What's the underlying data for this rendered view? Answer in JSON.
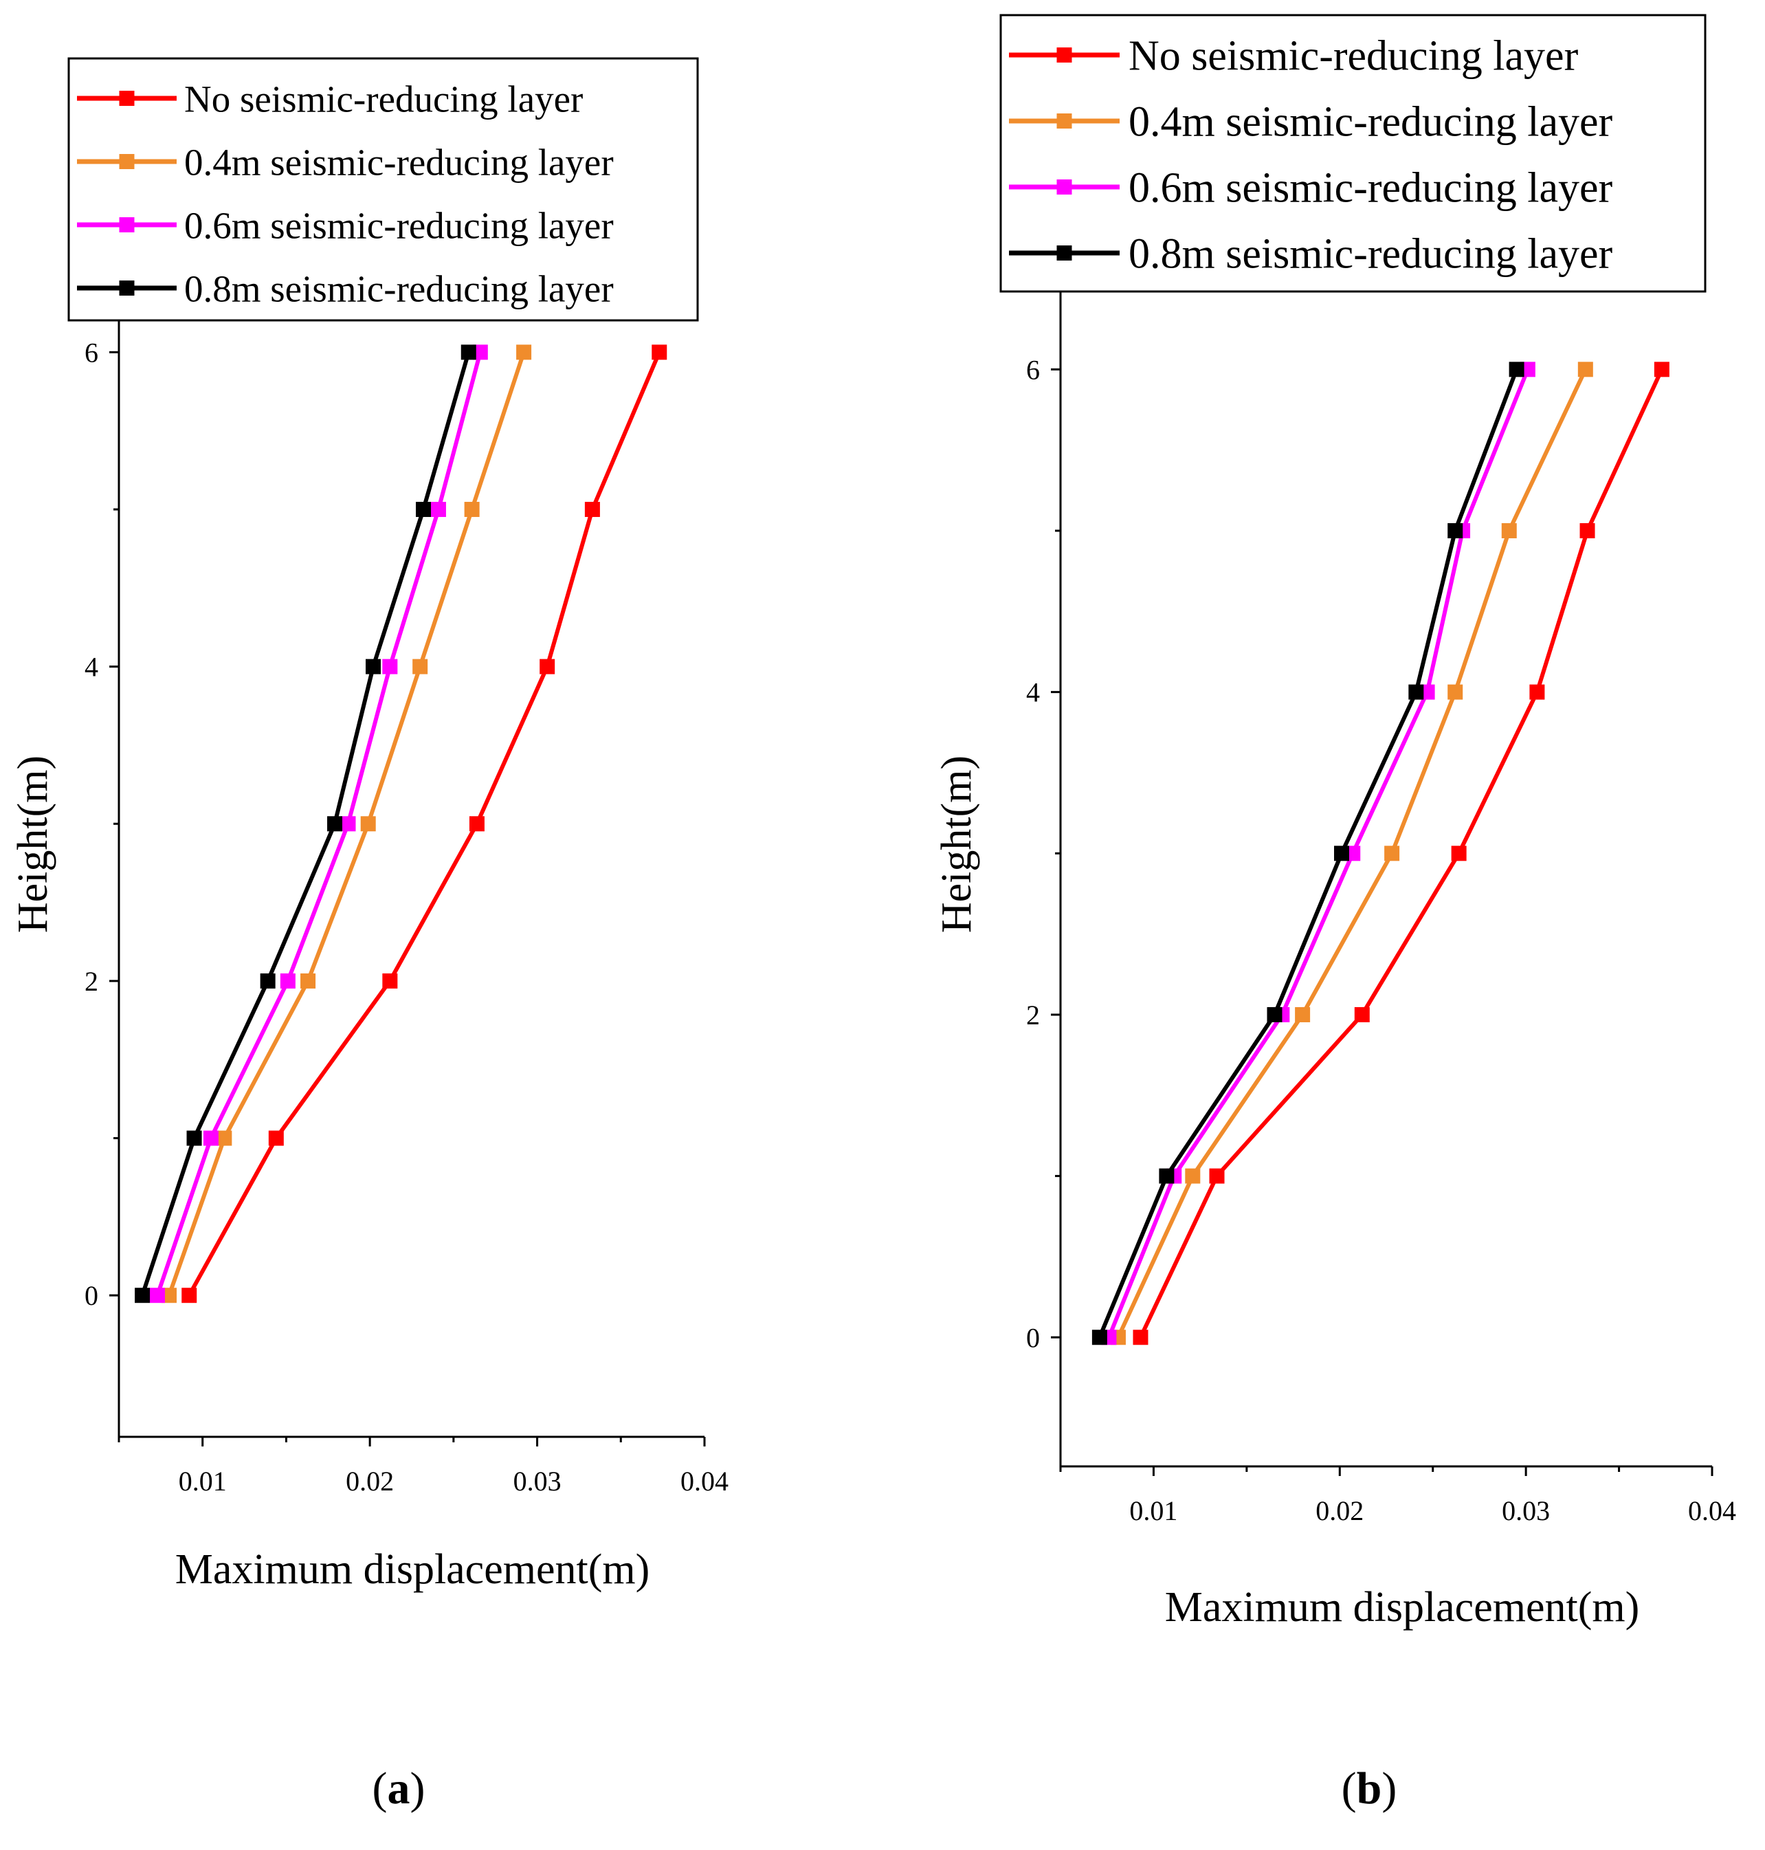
{
  "chart_data": [
    {
      "type": "line",
      "panel": "a",
      "caption_open": "(",
      "caption_letter": "a",
      "caption_close": ")",
      "xlabel": "Maximum displacement(m)",
      "ylabel": "Height(m)",
      "xlim": [
        0.005,
        0.04
      ],
      "ylim": [
        -0.9,
        6.5
      ],
      "xticks": [
        "0.01",
        "0.02",
        "0.03",
        "0.04"
      ],
      "yticks": [
        "0",
        "2",
        "4",
        "6"
      ],
      "legend_position": "top",
      "y": [
        0,
        1,
        2,
        3,
        4,
        5,
        6
      ],
      "series": [
        {
          "name": "No seismic-reducing layer",
          "color": "#ff0000",
          "x": [
            0.0092,
            0.0144,
            0.0212,
            0.0264,
            0.0306,
            0.0333,
            0.0373
          ]
        },
        {
          "name": "0.4m seismic-reducing layer",
          "color": "#f08c2c",
          "x": [
            0.008,
            0.0113,
            0.0163,
            0.0199,
            0.023,
            0.0261,
            0.0292
          ]
        },
        {
          "name": "0.6m seismic-reducing layer",
          "color": "#ff00ff",
          "x": [
            0.0073,
            0.0105,
            0.0151,
            0.0187,
            0.0212,
            0.0241,
            0.0266
          ]
        },
        {
          "name": "0.8m seismic-reducing layer",
          "color": "#000000",
          "x": [
            0.0064,
            0.0095,
            0.0139,
            0.0179,
            0.0202,
            0.0232,
            0.0259
          ]
        }
      ]
    },
    {
      "type": "line",
      "panel": "b",
      "caption_open": "(",
      "caption_letter": "b",
      "caption_close": ")",
      "xlabel": "Maximum displacement(m)",
      "ylabel": "Height(m)",
      "xlim": [
        0.005,
        0.04
      ],
      "ylim": [
        -0.8,
        6.5
      ],
      "xticks": [
        "0.01",
        "0.02",
        "0.03",
        "0.04"
      ],
      "yticks": [
        "0",
        "2",
        "4",
        "6"
      ],
      "legend_position": "top",
      "y": [
        0,
        1,
        2,
        3,
        4,
        5,
        6
      ],
      "series": [
        {
          "name": "No seismic-reducing layer",
          "color": "#ff0000",
          "x": [
            0.0093,
            0.0134,
            0.0212,
            0.0264,
            0.0306,
            0.0333,
            0.0373
          ]
        },
        {
          "name": "0.4m seismic-reducing layer",
          "color": "#f08c2c",
          "x": [
            0.0081,
            0.0121,
            0.018,
            0.0228,
            0.0262,
            0.0291,
            0.0332
          ]
        },
        {
          "name": "0.6m seismic-reducing layer",
          "color": "#ff00ff",
          "x": [
            0.0076,
            0.0111,
            0.0169,
            0.0207,
            0.0247,
            0.0266,
            0.0301
          ]
        },
        {
          "name": "0.8m seismic-reducing layer",
          "color": "#000000",
          "x": [
            0.0071,
            0.0107,
            0.0165,
            0.0201,
            0.0241,
            0.0262,
            0.0295
          ]
        }
      ]
    }
  ]
}
